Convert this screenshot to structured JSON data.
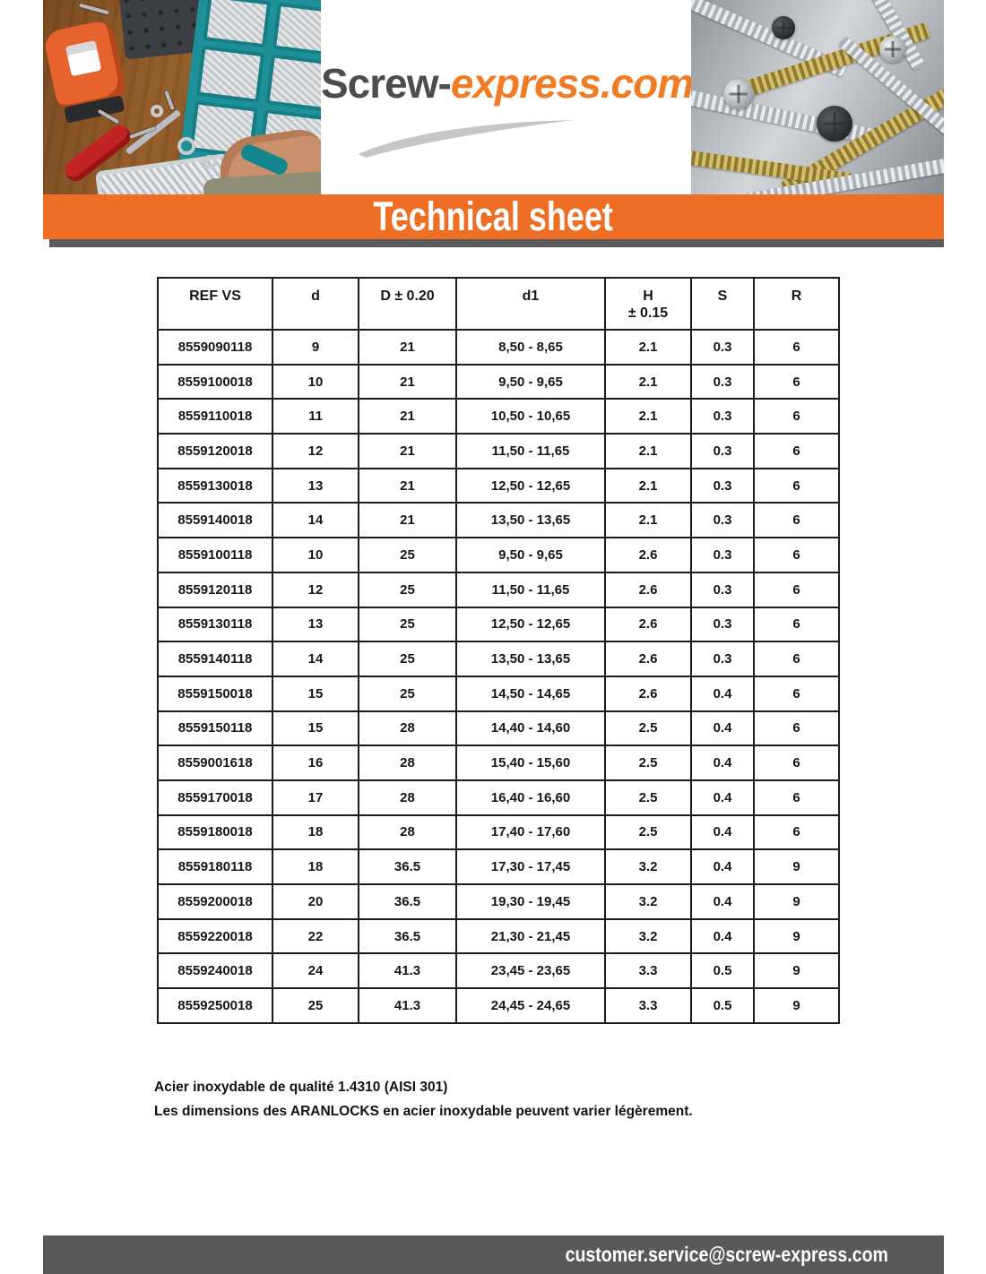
{
  "header": {
    "logo": {
      "part1": "Screw-",
      "part2": "express.com"
    },
    "photos": {
      "left": "workbench-with-screw-organizer-photo",
      "right": "pile-of-screws-photo"
    }
  },
  "banner": {
    "title": "Technical sheet"
  },
  "table": {
    "columns": [
      {
        "label": "REF VS"
      },
      {
        "label": "d"
      },
      {
        "label": "D ± 0.20"
      },
      {
        "label": "d1"
      },
      {
        "label": "H",
        "sub": "± 0.15"
      },
      {
        "label": "S"
      },
      {
        "label": "R"
      }
    ],
    "rows": [
      [
        "8559090118",
        "9",
        "21",
        "8,50 - 8,65",
        "2.1",
        "0.3",
        "6"
      ],
      [
        "8559100018",
        "10",
        "21",
        "9,50 - 9,65",
        "2.1",
        "0.3",
        "6"
      ],
      [
        "8559110018",
        "11",
        "21",
        "10,50 - 10,65",
        "2.1",
        "0.3",
        "6"
      ],
      [
        "8559120018",
        "12",
        "21",
        "11,50 - 11,65",
        "2.1",
        "0.3",
        "6"
      ],
      [
        "8559130018",
        "13",
        "21",
        "12,50 - 12,65",
        "2.1",
        "0.3",
        "6"
      ],
      [
        "8559140018",
        "14",
        "21",
        "13,50 - 13,65",
        "2.1",
        "0.3",
        "6"
      ],
      [
        "8559100118",
        "10",
        "25",
        "9,50 - 9,65",
        "2.6",
        "0.3",
        "6"
      ],
      [
        "8559120118",
        "12",
        "25",
        "11,50 - 11,65",
        "2.6",
        "0.3",
        "6"
      ],
      [
        "8559130118",
        "13",
        "25",
        "12,50 - 12,65",
        "2.6",
        "0.3",
        "6"
      ],
      [
        "8559140118",
        "14",
        "25",
        "13,50 - 13,65",
        "2.6",
        "0.3",
        "6"
      ],
      [
        "8559150018",
        "15",
        "25",
        "14,50 - 14,65",
        "2.6",
        "0.4",
        "6"
      ],
      [
        "8559150118",
        "15",
        "28",
        "14,40 - 14,60",
        "2.5",
        "0.4",
        "6"
      ],
      [
        "8559001618",
        "16",
        "28",
        "15,40 - 15,60",
        "2.5",
        "0.4",
        "6"
      ],
      [
        "8559170018",
        "17",
        "28",
        "16,40 - 16,60",
        "2.5",
        "0.4",
        "6"
      ],
      [
        "8559180018",
        "18",
        "28",
        "17,40 - 17,60",
        "2.5",
        "0.4",
        "6"
      ],
      [
        "8559180118",
        "18",
        "36.5",
        "17,30 - 17,45",
        "3.2",
        "0.4",
        "9"
      ],
      [
        "8559200018",
        "20",
        "36.5",
        "19,30 - 19,45",
        "3.2",
        "0.4",
        "9"
      ],
      [
        "8559220018",
        "22",
        "36.5",
        "21,30 - 21,45",
        "3.2",
        "0.4",
        "9"
      ],
      [
        "8559240018",
        "24",
        "41.3",
        "23,45 - 23,65",
        "3.3",
        "0.5",
        "9"
      ],
      [
        "8559250018",
        "25",
        "41.3",
        "24,45 - 24,65",
        "3.3",
        "0.5",
        "9"
      ]
    ]
  },
  "notes": {
    "line1": "Acier inoxydable de qualité 1.4310 (AISI 301)",
    "line2": "Les dimensions des ARANLOCKS en acier inoxydable peuvent varier légèrement."
  },
  "footer": {
    "email": "customer.service@screw-express.com"
  },
  "colors": {
    "accent_orange": "#ed6e24",
    "logo_orange": "#f07c26",
    "logo_gray": "#4d4d4f",
    "footer_bar_gray": "#58595b",
    "banner_shadow_gray": "#59595c"
  }
}
